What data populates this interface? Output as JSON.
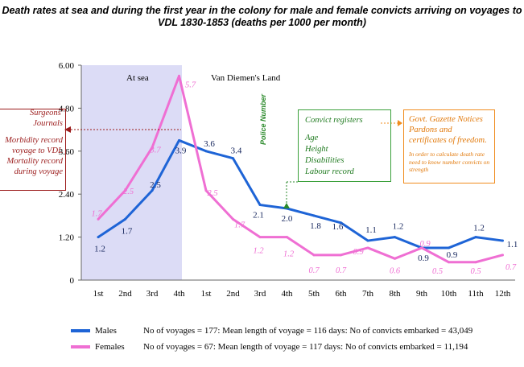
{
  "title": {
    "line1": "Death rates at sea and during the first year in the colony for male and female convicts arriving on voyages to",
    "line2": "VDL 1830-1853 (deaths per 1000 per month)"
  },
  "colors": {
    "males": "#1e64d6",
    "females": "#ef6fd3",
    "shade": "#dcdcf6",
    "red": "#9b1b1b",
    "green": "#2b8a2b",
    "orange": "#f08c1e"
  },
  "chart_data": {
    "type": "line",
    "categories": [
      "1st",
      "2nd",
      "3rd",
      "4th",
      "1st",
      "2nd",
      "3rd",
      "4th",
      "5th",
      "6th",
      "7th",
      "8th",
      "9th",
      "10th",
      "11th",
      "12th"
    ],
    "ylim": [
      0,
      6.0
    ],
    "yticks": [
      "0",
      "1.20",
      "2.40",
      "3.60",
      "4.80",
      "6.00"
    ],
    "grid": false,
    "legend_placement": "bottom",
    "region_labels": {
      "sea": "At sea",
      "land": "Van Diemen's Land"
    },
    "series": [
      {
        "name": "Males",
        "values": [
          1.2,
          1.7,
          2.5,
          3.9,
          3.6,
          3.4,
          2.1,
          2.0,
          1.8,
          1.6,
          1.1,
          1.2,
          0.9,
          0.9,
          1.2,
          1.1
        ],
        "labels": [
          "1.2",
          "1.7",
          "2.5",
          "3.9",
          "3.6",
          "3.4",
          "2.1",
          "2.0",
          "1.8",
          "1.6",
          "1.1",
          "1.2",
          "0.9",
          "0.9",
          "1.2",
          "1.1"
        ]
      },
      {
        "name": "Females",
        "values": [
          1.7,
          2.5,
          3.7,
          5.7,
          2.5,
          1.7,
          1.2,
          1.2,
          0.7,
          0.7,
          0.9,
          0.6,
          0.9,
          0.5,
          0.5,
          0.7
        ],
        "labels": [
          "1.7",
          "2.5",
          "3.7",
          "5.7",
          "2.5",
          "1.7",
          "1.2",
          "1.2",
          "0.7",
          "0.7",
          "0.9",
          "0.6",
          "0.9",
          "0.5",
          "0.5",
          "0.7"
        ]
      }
    ]
  },
  "annotations": {
    "surgeons": {
      "head": "Surgeons' Journals",
      "l1": "Morbidity record",
      "l2": "voyage to VDL",
      "l3": "Mortality record",
      "l4": "during voyage"
    },
    "police": "Police Number",
    "convict": {
      "l1": "Convict registers",
      "l2": "Age",
      "l3": "Height",
      "l4": "Disabilities",
      "l5": "Labour record"
    },
    "gazette": {
      "l1": "Govt. Gazette Notices",
      "l2": "Pardons and",
      "l3": "certificates of freedom.",
      "note": "In order to calculate death rate need to know number convicts on strength"
    }
  },
  "legend": {
    "males": {
      "name": "Males",
      "text": "No of voyages =  177:  Mean length of voyage = 116 days:   No of convicts embarked = 43,049"
    },
    "females": {
      "name": "Females",
      "text": "No of voyages =  67:  Mean length of voyage = 117 days:   No of convicts embarked = 11,194"
    }
  }
}
